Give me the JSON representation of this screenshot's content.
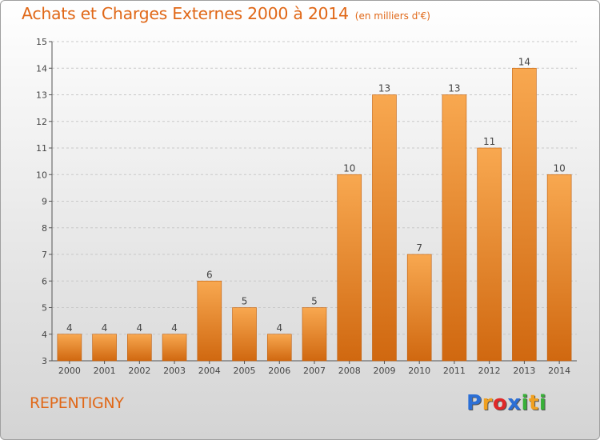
{
  "title": "Achats et Charges Externes 2000 à 2014",
  "subtitle": "(en milliers d'€)",
  "town": "REPENTIGNY",
  "logo": {
    "letters": [
      "P",
      "r",
      "o",
      "x",
      "i",
      "t",
      "i"
    ],
    "colors": [
      "#2b6fd6",
      "#f0a020",
      "#e02828",
      "#2b6fd6",
      "#38b038",
      "#f0a020",
      "#38b038"
    ]
  },
  "colors": {
    "title": "#e06818",
    "bar_top": "#f8a850",
    "bar_bottom": "#d06810",
    "bar_edge": "#c06010",
    "grid": "#c8c8c8",
    "axis": "#555555"
  },
  "chart_data": {
    "type": "bar",
    "title": "Achats et Charges Externes 2000 à 2014",
    "subtitle": "(en milliers d'€)",
    "categories": [
      "2000",
      "2001",
      "2002",
      "2003",
      "2004",
      "2005",
      "2006",
      "2007",
      "2008",
      "2009",
      "2010",
      "2011",
      "2012",
      "2013",
      "2014"
    ],
    "values": [
      4,
      4,
      4,
      4,
      6,
      5,
      4,
      5,
      10,
      13,
      7,
      13,
      11,
      14,
      10
    ],
    "ylim": [
      3,
      15
    ],
    "yticks": [
      3,
      4,
      5,
      6,
      7,
      8,
      9,
      10,
      11,
      12,
      13,
      14,
      15
    ],
    "grid": true,
    "data_labels": true
  }
}
